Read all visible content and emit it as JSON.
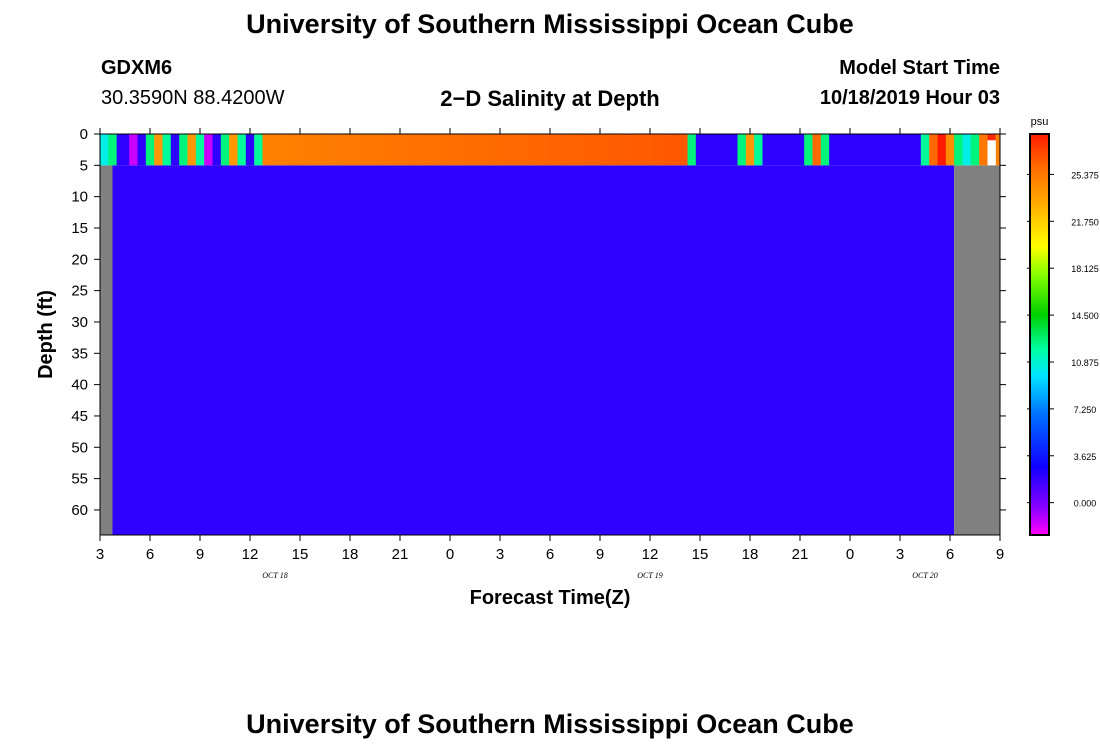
{
  "header": {
    "title": "University of Southern Mississippi Ocean Cube",
    "station_id": "GDXM6",
    "coordinates": "30.3590N 88.4200W",
    "plot_title": "2−D Salinity at Depth",
    "model_start_label": "Model Start Time",
    "model_start_value": "10/18/2019 Hour 03"
  },
  "footer": {
    "title": "University of Southern Mississippi Ocean Cube"
  },
  "colors": {
    "missing": "#808080",
    "background": "#7700ff",
    "axis": "#000000"
  },
  "chart_data": {
    "type": "heatmap",
    "title": "2−D Salinity at Depth",
    "xlabel": "Forecast Time(Z)",
    "ylabel": "Depth (ft)",
    "units": "psu",
    "xlim": [
      3,
      57
    ],
    "ylim": [
      0,
      64
    ],
    "x_ticks": [
      {
        "v": 3,
        "label": "3"
      },
      {
        "v": 6,
        "label": "6"
      },
      {
        "v": 9,
        "label": "9"
      },
      {
        "v": 12,
        "label": "12"
      },
      {
        "v": 15,
        "label": "15"
      },
      {
        "v": 18,
        "label": "18"
      },
      {
        "v": 21,
        "label": "21"
      },
      {
        "v": 24,
        "label": "0"
      },
      {
        "v": 27,
        "label": "3"
      },
      {
        "v": 30,
        "label": "6"
      },
      {
        "v": 33,
        "label": "9"
      },
      {
        "v": 36,
        "label": "12"
      },
      {
        "v": 39,
        "label": "15"
      },
      {
        "v": 42,
        "label": "18"
      },
      {
        "v": 45,
        "label": "21"
      },
      {
        "v": 48,
        "label": "0"
      },
      {
        "v": 51,
        "label": "3"
      },
      {
        "v": 54,
        "label": "6"
      },
      {
        "v": 57,
        "label": "9"
      }
    ],
    "date_labels": [
      {
        "v": 13.5,
        "label": "OCT 18"
      },
      {
        "v": 36,
        "label": "OCT 19"
      },
      {
        "v": 52.5,
        "label": "OCT 20"
      }
    ],
    "y_ticks": [
      0,
      5,
      10,
      15,
      20,
      25,
      30,
      35,
      40,
      45,
      50,
      55,
      60
    ],
    "colorbar": {
      "label": "psu",
      "min": -2.5,
      "max": 28.5,
      "labels": [
        0.0,
        3.625,
        7.25,
        10.875,
        14.5,
        18.125,
        21.75,
        25.375
      ],
      "label_text": [
        "0.000",
        "3.625",
        "7.250",
        "10.875",
        "14.500",
        "18.125",
        "21.750",
        "25.375"
      ]
    },
    "missing_columns": [
      [
        3,
        3.75
      ],
      [
        54.25,
        57
      ]
    ],
    "deep_layer": {
      "x0": 3.75,
      "x1": 54.25,
      "d0": 5,
      "d1": 64,
      "value": 2.0
    },
    "surface_segments": [
      {
        "x0": 3.0,
        "x1": 3.5,
        "value": 10.5
      },
      {
        "x0": 3.5,
        "x1": 4.0,
        "value": 12.5
      },
      {
        "x0": 4.0,
        "x1": 4.75,
        "value": 2.0
      },
      {
        "x0": 4.75,
        "x1": 5.25,
        "value": -1.5
      },
      {
        "x0": 5.25,
        "x1": 5.75,
        "value": 2.0
      },
      {
        "x0": 5.75,
        "x1": 6.25,
        "value": 12.5
      },
      {
        "x0": 6.25,
        "x1": 6.75,
        "value": 24.0
      },
      {
        "x0": 6.75,
        "x1": 7.25,
        "value": 12.0
      },
      {
        "x0": 7.25,
        "x1": 7.75,
        "value": 2.0
      },
      {
        "x0": 7.75,
        "x1": 8.25,
        "value": 12.5
      },
      {
        "x0": 8.25,
        "x1": 8.75,
        "value": 24.0
      },
      {
        "x0": 8.75,
        "x1": 9.25,
        "value": 12.0
      },
      {
        "x0": 9.25,
        "x1": 9.75,
        "value": -1.5
      },
      {
        "x0": 9.75,
        "x1": 10.25,
        "value": 2.0
      },
      {
        "x0": 10.25,
        "x1": 10.75,
        "value": 12.5
      },
      {
        "x0": 10.75,
        "x1": 11.25,
        "value": 24.0
      },
      {
        "x0": 11.25,
        "x1": 11.75,
        "value": 12.0
      },
      {
        "x0": 11.75,
        "x1": 12.25,
        "value": 2.0
      },
      {
        "x0": 12.25,
        "x1": 12.75,
        "value": 12.0
      },
      {
        "x0": 12.75,
        "x1": 38.25,
        "value": 25.0,
        "value_end": 26.6
      },
      {
        "x0": 38.25,
        "x1": 38.75,
        "value": 12.5
      },
      {
        "x0": 38.75,
        "x1": 41.25,
        "value": 2.0
      },
      {
        "x0": 41.25,
        "x1": 41.75,
        "value": 12.5
      },
      {
        "x0": 41.75,
        "x1": 42.25,
        "value": 24.0
      },
      {
        "x0": 42.25,
        "x1": 42.75,
        "value": 12.0
      },
      {
        "x0": 42.75,
        "x1": 45.25,
        "value": 2.0
      },
      {
        "x0": 45.25,
        "x1": 45.75,
        "value": 12.5
      },
      {
        "x0": 45.75,
        "x1": 46.25,
        "value": 26.0
      },
      {
        "x0": 46.25,
        "x1": 46.75,
        "value": 12.5
      },
      {
        "x0": 46.75,
        "x1": 52.25,
        "value": 2.0
      },
      {
        "x0": 52.25,
        "x1": 52.75,
        "value": 12.0
      },
      {
        "x0": 52.75,
        "x1": 53.25,
        "value": 26.0
      },
      {
        "x0": 53.25,
        "x1": 53.75,
        "value": 28.5
      },
      {
        "x0": 53.75,
        "x1": 54.25,
        "value": 24.5
      },
      {
        "x0": 54.25,
        "x1": 54.75,
        "value": 12.5
      },
      {
        "x0": 54.75,
        "x1": 55.25,
        "value": 10.5
      },
      {
        "x0": 55.25,
        "x1": 55.75,
        "value": 12.5
      },
      {
        "x0": 55.75,
        "x1": 56.25,
        "value": 25.5
      },
      {
        "x0": 56.25,
        "x1": 56.75,
        "value": 28.0,
        "partial": true
      },
      {
        "x0": 56.75,
        "x1": 57.0,
        "value": 25.0
      }
    ],
    "surface_depth": [
      0,
      5
    ]
  }
}
